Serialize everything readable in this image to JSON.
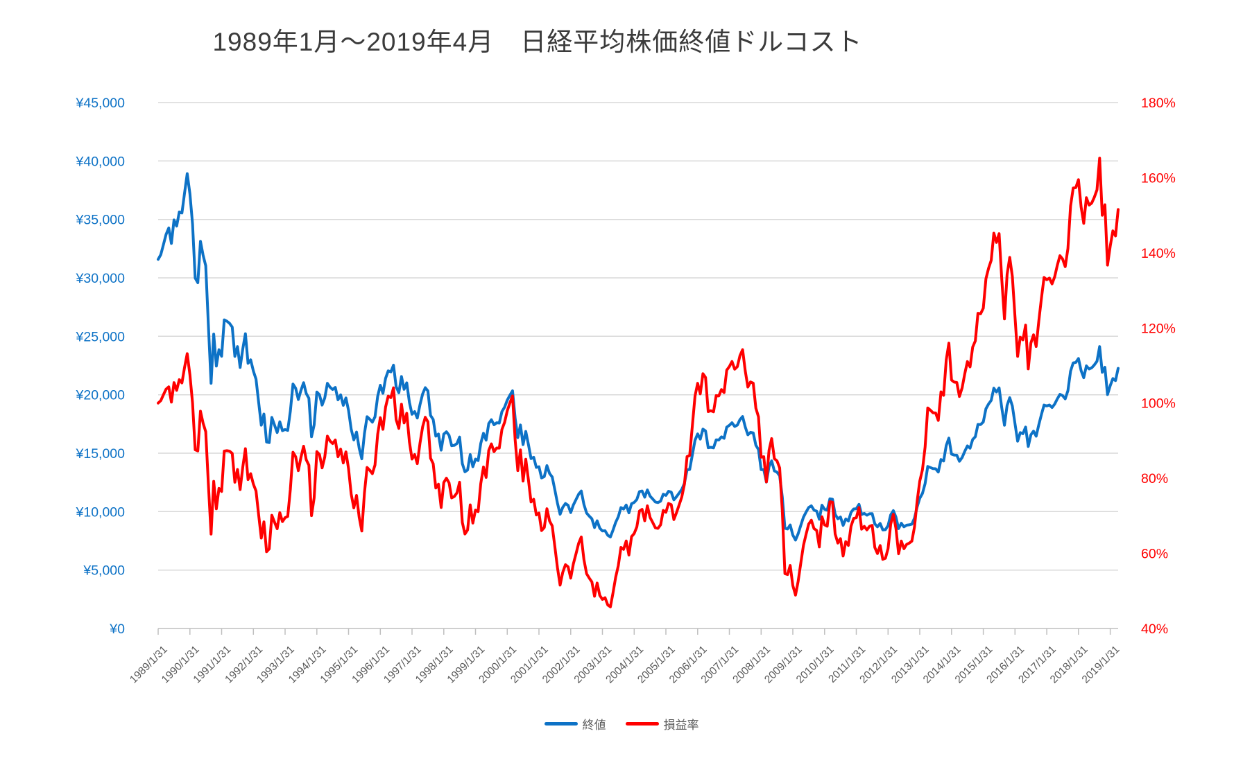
{
  "title": "1989年1月～2019年4月　日経平均株価終値ドルコスト",
  "colors": {
    "close": "#0d72c6",
    "ratio": "#ff0000",
    "grid": "#d9d9d9",
    "axis_line": "#bfbfbf",
    "left_axis_text": "#0d72c6",
    "right_axis_text": "#ff0000",
    "x_axis_text": "#595959",
    "title_text": "#3b3b3b",
    "legend_text": "#595959",
    "background": "#ffffff"
  },
  "legend": {
    "items": [
      {
        "label": "終値",
        "series": "close"
      },
      {
        "label": "損益率",
        "series": "ratio"
      }
    ]
  },
  "chart_data": {
    "type": "line",
    "title": "1989年1月～2019年4月　日経平均株価終値ドルコスト",
    "grid": "horizontal",
    "legend_position": "bottom",
    "x": {
      "start": "1989/1",
      "end": "2019/4",
      "points": 364,
      "frequency": "monthly",
      "label_rotation_deg": -45,
      "tick_labels": [
        "1989/1/31",
        "1990/1/31",
        "1991/1/31",
        "1992/1/31",
        "1993/1/31",
        "1994/1/31",
        "1995/1/31",
        "1996/1/31",
        "1997/1/31",
        "1998/1/31",
        "1999/1/31",
        "2000/1/31",
        "2001/1/31",
        "2002/1/31",
        "2003/1/31",
        "2004/1/31",
        "2005/1/31",
        "2006/1/31",
        "2007/1/31",
        "2008/1/31",
        "2009/1/31",
        "2010/1/31",
        "2011/1/31",
        "2012/1/31",
        "2013/1/31",
        "2014/1/31",
        "2015/1/31",
        "2016/1/31",
        "2017/1/31",
        "2018/1/31",
        "2019/1/31"
      ]
    },
    "left_axis": {
      "unit": "yen",
      "min": 0,
      "max": 45000,
      "step": 5000,
      "tick_labels": [
        "¥0",
        "¥5,000",
        "¥10,000",
        "¥15,000",
        "¥20,000",
        "¥25,000",
        "¥30,000",
        "¥35,000",
        "¥40,000",
        "¥45,000"
      ]
    },
    "right_axis": {
      "unit": "percent",
      "min": 40,
      "max": 180,
      "step": 20,
      "tick_labels": [
        "40%",
        "60%",
        "80%",
        "100%",
        "120%",
        "140%",
        "160%",
        "180%"
      ]
    },
    "series": [
      {
        "name": "終値",
        "axis": "left",
        "color": "#0d72c6",
        "values": [
          31581,
          31986,
          32839,
          33714,
          34267,
          32949,
          34954,
          34431,
          35637,
          35549,
          37269,
          38916,
          37189,
          34592,
          29980,
          29585,
          33131,
          31940,
          31036,
          25978,
          20984,
          25194,
          22455,
          23849,
          23293,
          26409,
          26292,
          26111,
          25790,
          23291,
          24121,
          22336,
          23916,
          25222,
          22687,
          22984,
          22023,
          21339,
          19346,
          17391,
          18348,
          15952,
          15910,
          18061,
          17399,
          16767,
          17684,
          16925,
          17024,
          16953,
          18591,
          20919,
          20552,
          19590,
          20380,
          21027,
          20106,
          19703,
          16406,
          17417,
          20229,
          19997,
          19112,
          19725,
          20974,
          20644,
          20449,
          20629,
          19564,
          19990,
          19098,
          19723,
          18650,
          17053,
          16140,
          16807,
          15437,
          14517,
          16678,
          18117,
          17913,
          17655,
          18109,
          19868,
          20813,
          20125,
          21407,
          22041,
          21956,
          22531,
          20693,
          20167,
          21556,
          20467,
          21020,
          19361,
          18330,
          18557,
          18003,
          19151,
          20069,
          20605,
          20331,
          18229,
          17888,
          16459,
          16636,
          15259,
          16628,
          16831,
          16527,
          15641,
          15671,
          15830,
          16379,
          14108,
          13406,
          13565,
          14884,
          13842,
          14499,
          14368,
          15837,
          16702,
          16112,
          17530,
          17862,
          17430,
          17605,
          17582,
          18559,
          18934,
          19539,
          19959,
          20337,
          17974,
          16332,
          17411,
          15727,
          16861,
          15747,
          14540,
          14649,
          13786,
          13844,
          12884,
          12999,
          13934,
          13262,
          12969,
          11861,
          10714,
          9775,
          10366,
          10697,
          10543,
          9919,
          10572,
          11025,
          11493,
          11764,
          10622,
          9878,
          9619,
          9383,
          8640,
          9216,
          8579,
          8339,
          8363,
          7973,
          7831,
          8425,
          9083,
          9563,
          10343,
          10219,
          10559,
          9895,
          10677,
          10784,
          11041,
          11716,
          11761,
          11236,
          11859,
          11326,
          11082,
          10824,
          10772,
          10900,
          11489,
          11387,
          11740,
          11669,
          11009,
          11277,
          11584,
          11900,
          12414,
          13574,
          13607,
          14872,
          16111,
          16649,
          16205,
          17060,
          16906,
          15467,
          15505,
          15457,
          16141,
          16128,
          16399,
          16274,
          17226,
          17383,
          17604,
          17288,
          17400,
          17876,
          18138,
          17249,
          16569,
          16786,
          16738,
          15681,
          15308,
          13592,
          13603,
          12526,
          13850,
          14339,
          13481,
          13377,
          13073,
          11260,
          8577,
          8512,
          8860,
          7994,
          7568,
          8110,
          8828,
          9523,
          9958,
          10357,
          10493,
          10133,
          10035,
          9346,
          10546,
          10198,
          10126,
          11090,
          11057,
          9769,
          9383,
          9537,
          8824,
          9369,
          9202,
          9937,
          10229,
          10237,
          10624,
          9755,
          9850,
          9694,
          9816,
          9833,
          8955,
          8700,
          8988,
          8435,
          8455,
          8803,
          9723,
          10084,
          9521,
          8543,
          9007,
          8695,
          8840,
          8870,
          8928,
          9446,
          10395,
          11139,
          11559,
          12398,
          13861,
          13775,
          13677,
          13668,
          13389,
          14456,
          14328,
          15662,
          16291,
          14915,
          14841,
          14828,
          14304,
          14632,
          15162,
          15621,
          15425,
          16174,
          16414,
          17460,
          17451,
          17674,
          18798,
          19207,
          19520,
          20563,
          20236,
          20585,
          18890,
          17388,
          19083,
          19747,
          19034,
          17518,
          16027,
          16759,
          16666,
          17235,
          15576,
          16569,
          16887,
          16450,
          17425,
          18308,
          19114,
          19041,
          19119,
          18909,
          19197,
          19651,
          20033,
          19925,
          19646,
          20356,
          22012,
          22725,
          22765,
          23098,
          22068,
          21454,
          22468,
          22202,
          22305,
          22554,
          22865,
          24120,
          21920,
          22351,
          20015,
          20773,
          21385,
          21206,
          22259
        ]
      },
      {
        "name": "損益率",
        "axis": "right",
        "color": "#ff0000",
        "derived_from": "終値",
        "formula": "percent[t] = price[t] * mean(1/price[0..t]) * 100",
        "values": "derived"
      }
    ]
  }
}
